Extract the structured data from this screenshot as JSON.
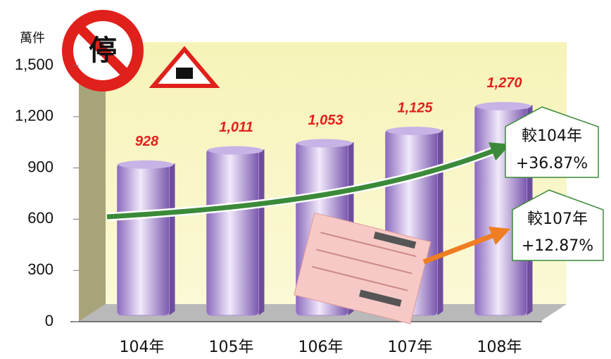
{
  "chart_data": {
    "type": "bar",
    "y_unit": "萬件",
    "sign_text": "停",
    "categories": [
      "104年",
      "105年",
      "106年",
      "107年",
      "108年"
    ],
    "values": [
      928,
      1011,
      1053,
      1125,
      1270
    ],
    "value_labels": [
      "928",
      "1,011",
      "1,053",
      "1,125",
      "1,270"
    ],
    "color": "#a98bd1",
    "ylim": [
      0,
      1500
    ],
    "yticks": [
      0,
      300,
      600,
      900,
      {
        "value": 1200,
        "label": "1,200"
      },
      {
        "value": 1500,
        "label": "1,500"
      }
    ],
    "annotations": [
      [
        "較104年",
        "+36.87%"
      ],
      [
        "較107年",
        "+12.87%"
      ]
    ]
  }
}
